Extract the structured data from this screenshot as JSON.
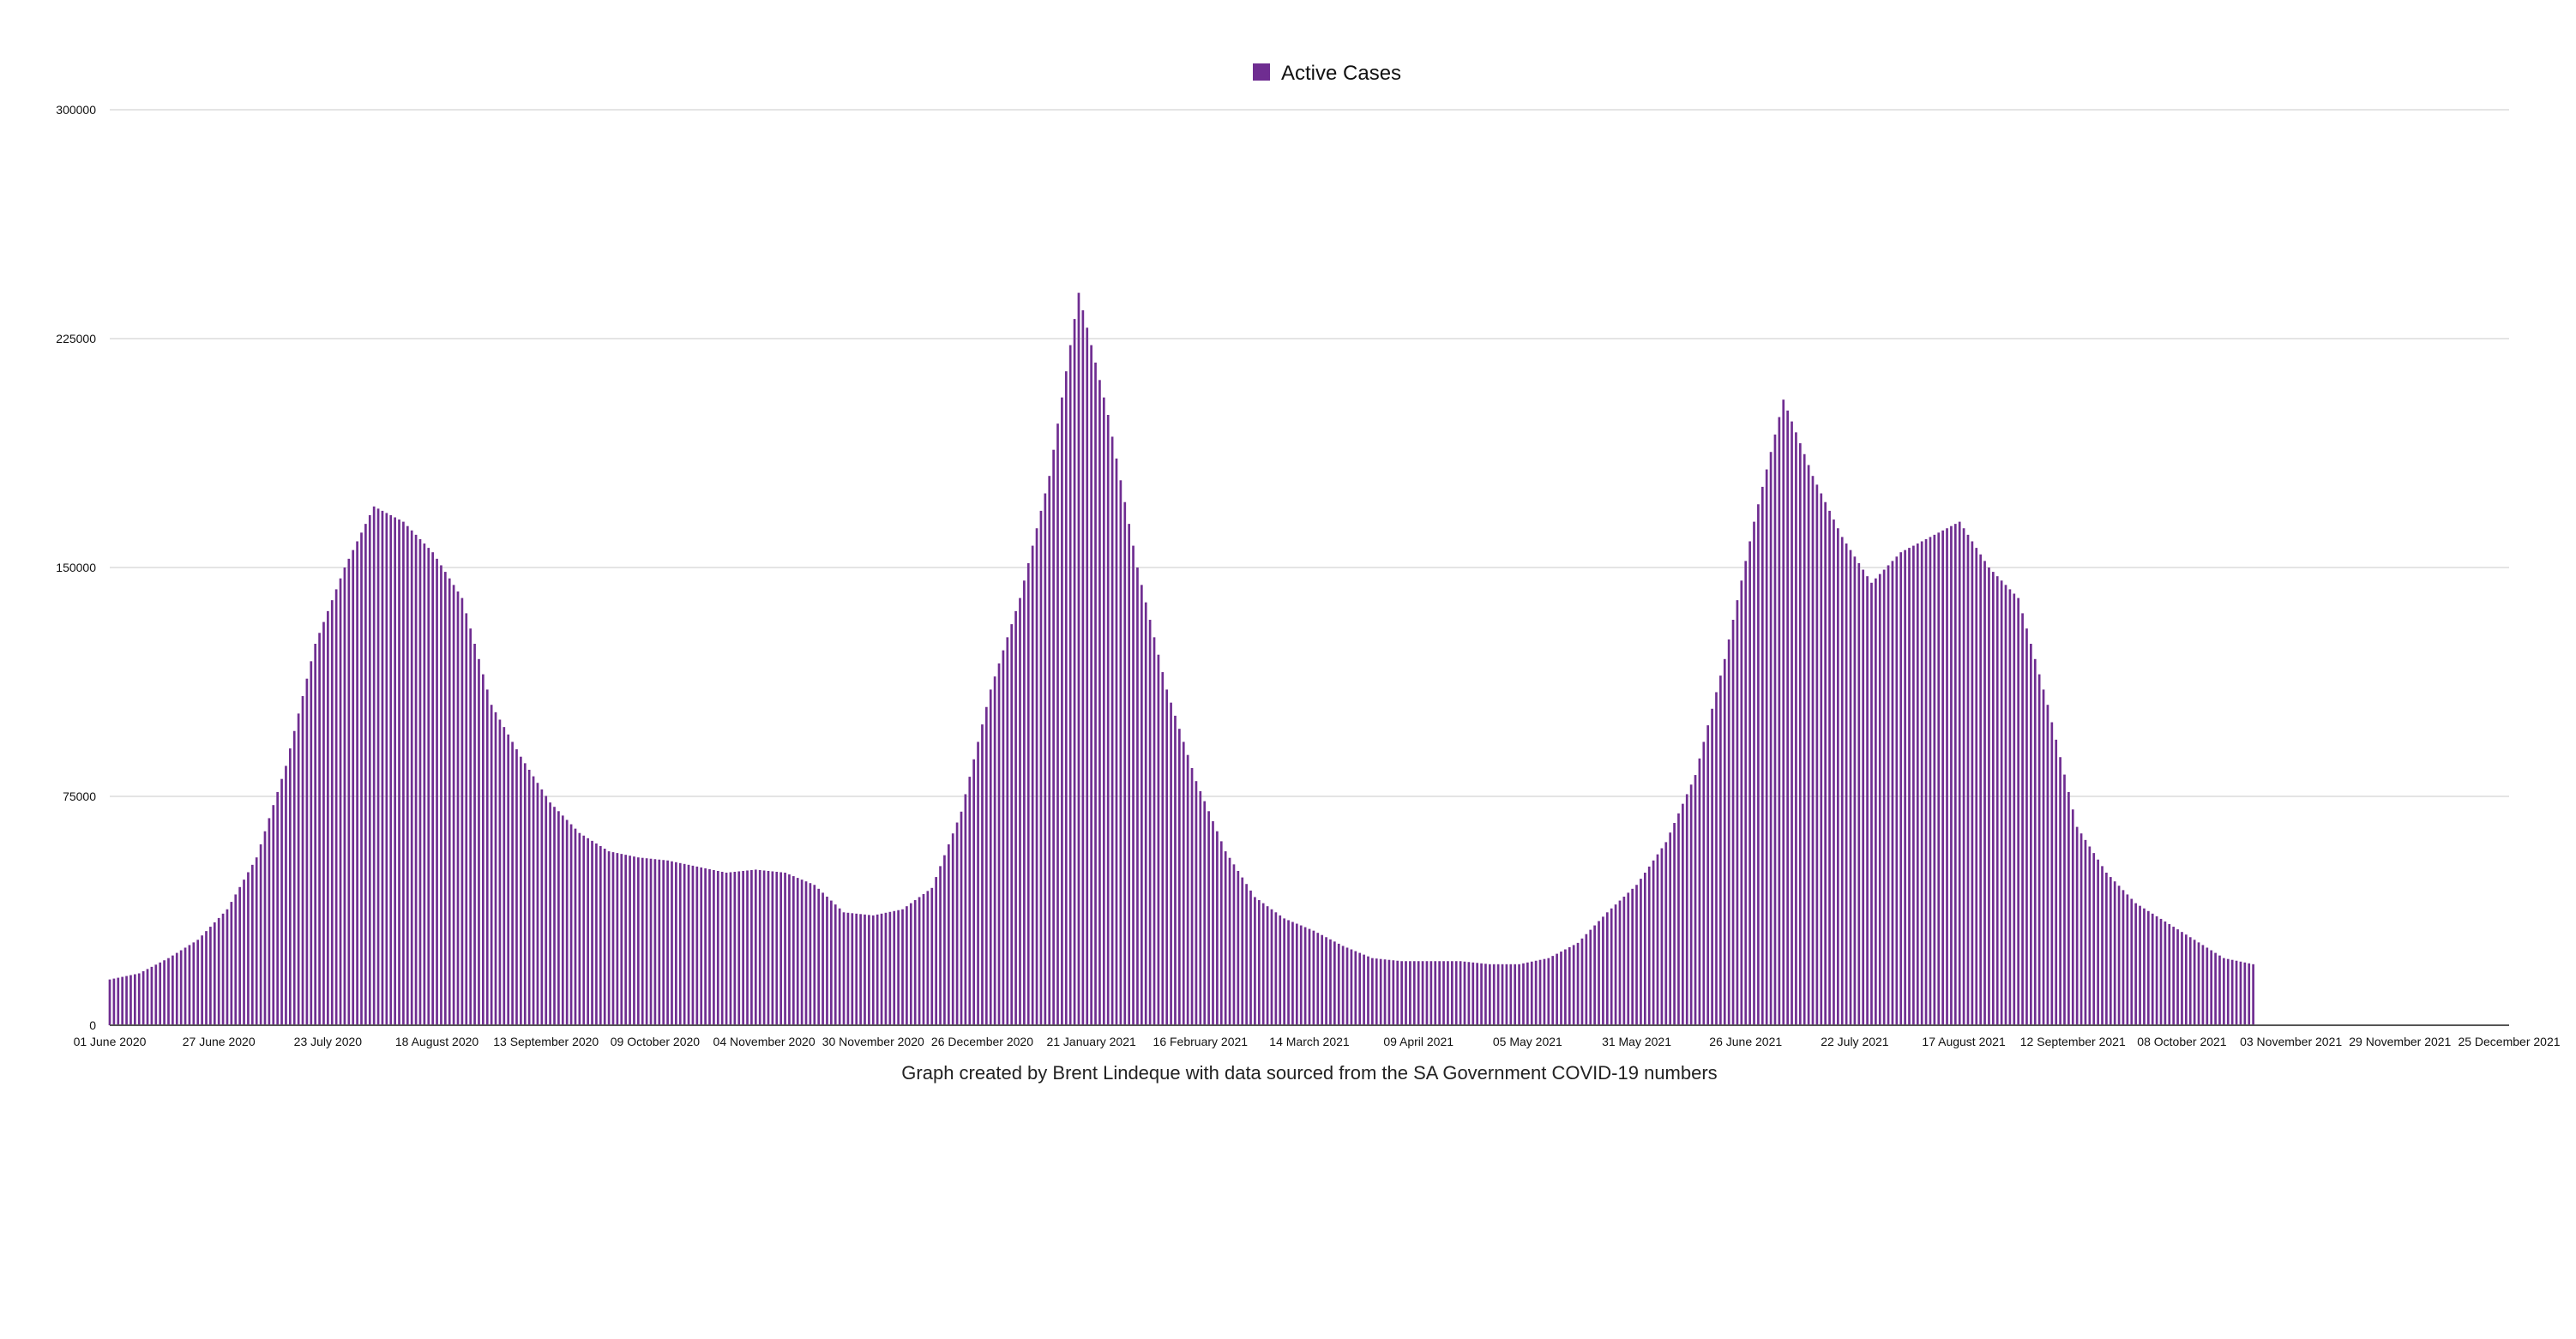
{
  "caption": "Graph created by Brent Lindeque with data sourced from the SA Government COVID-19 numbers",
  "chart_data": {
    "type": "bar",
    "title": "",
    "xlabel": "",
    "ylabel": "",
    "ylim": [
      0,
      300000
    ],
    "y_ticks": [
      "0",
      "75000",
      "150000",
      "225000",
      "300000"
    ],
    "x_tick_labels": [
      "01 June 2020",
      "27 June 2020",
      "23 July 2020",
      "18 August 2020",
      "13 September 2020",
      "09 October 2020",
      "04 November 2020",
      "30 November 2020",
      "26 December 2020",
      "21 January 2021",
      "16 February 2021",
      "14 March 2021",
      "09 April 2021",
      "05 May 2021",
      "31 May 2021",
      "26 June 2021",
      "22 July 2021",
      "17 August 2021",
      "12 September 2021",
      "08 October 2021",
      "03 November 2021",
      "29 November 2021",
      "25 December 2021"
    ],
    "x_range": [
      "2020-06-01",
      "2021-12-25"
    ],
    "grid": true,
    "legend_position": "top-center",
    "bar_color": "#6f2d91",
    "series": [
      {
        "name": "Active Cases",
        "dates": [
          "2020-06-01",
          "2020-06-08",
          "2020-06-15",
          "2020-06-22",
          "2020-06-29",
          "2020-07-06",
          "2020-07-13",
          "2020-07-20",
          "2020-07-27",
          "2020-08-03",
          "2020-08-10",
          "2020-08-17",
          "2020-08-24",
          "2020-08-31",
          "2020-09-07",
          "2020-09-14",
          "2020-09-21",
          "2020-09-28",
          "2020-10-05",
          "2020-10-12",
          "2020-10-19",
          "2020-10-26",
          "2020-11-02",
          "2020-11-09",
          "2020-11-16",
          "2020-11-23",
          "2020-11-30",
          "2020-12-07",
          "2020-12-14",
          "2020-12-21",
          "2020-12-28",
          "2021-01-04",
          "2021-01-11",
          "2021-01-18",
          "2021-01-25",
          "2021-02-01",
          "2021-02-08",
          "2021-02-15",
          "2021-02-22",
          "2021-03-01",
          "2021-03-08",
          "2021-03-15",
          "2021-03-22",
          "2021-03-29",
          "2021-04-05",
          "2021-04-12",
          "2021-04-19",
          "2021-04-26",
          "2021-05-03",
          "2021-05-10",
          "2021-05-17",
          "2021-05-24",
          "2021-05-31",
          "2021-06-07",
          "2021-06-14",
          "2021-06-21",
          "2021-06-28",
          "2021-07-05",
          "2021-07-12",
          "2021-07-19",
          "2021-07-26",
          "2021-08-02",
          "2021-08-09",
          "2021-08-16",
          "2021-08-23",
          "2021-08-30",
          "2021-09-06",
          "2021-09-13",
          "2021-09-20",
          "2021-09-27",
          "2021-10-04",
          "2021-10-11",
          "2021-10-18",
          "2021-10-25"
        ],
        "values": [
          15000,
          17000,
          22000,
          28000,
          38000,
          55000,
          85000,
          125000,
          150000,
          170000,
          165000,
          155000,
          140000,
          105000,
          88000,
          73000,
          63000,
          57000,
          55000,
          54000,
          52000,
          50000,
          51000,
          50000,
          46000,
          37000,
          36000,
          38000,
          45000,
          70000,
          110000,
          140000,
          180000,
          240000,
          200000,
          150000,
          110000,
          80000,
          57000,
          42000,
          35000,
          31000,
          26000,
          22000,
          21000,
          21000,
          21000,
          20000,
          20000,
          22000,
          27000,
          37000,
          46000,
          60000,
          82000,
          120000,
          165000,
          205000,
          180000,
          160000,
          145000,
          155000,
          160000,
          165000,
          150000,
          140000,
          105000,
          65000,
          50000,
          40000,
          34000,
          28000,
          22000,
          20000
        ]
      }
    ]
  }
}
